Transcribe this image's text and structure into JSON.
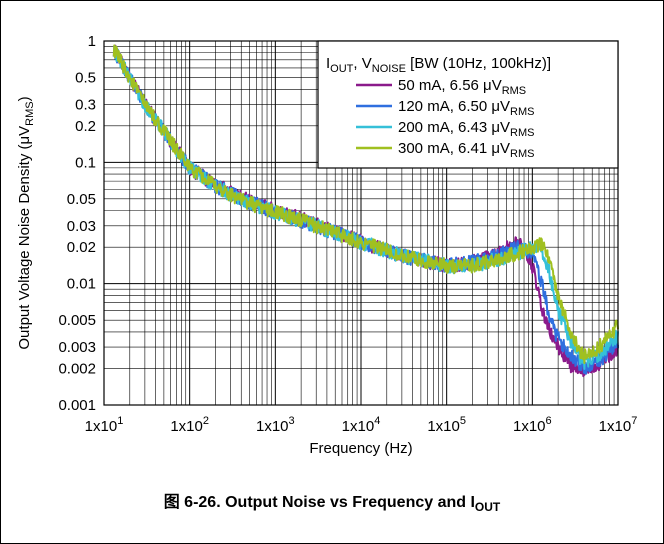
{
  "caption": {
    "prefix": "图 6-26. Output Noise vs Frequency and I",
    "sub": "OUT"
  },
  "chart_data": {
    "type": "line",
    "xscale": "log",
    "yscale": "log",
    "xlim": [
      10,
      10000000
    ],
    "ylim": [
      0.001,
      1
    ],
    "grid": true,
    "xlabel": "Frequency (Hz)",
    "ylabel": {
      "text": "Output Voltage Noise Density (μV",
      "sub": "RMS",
      "suffix": ")"
    },
    "x_ticks": [
      {
        "base": "1x10",
        "exp": "1",
        "value": 10
      },
      {
        "base": "1x10",
        "exp": "2",
        "value": 100
      },
      {
        "base": "1x10",
        "exp": "3",
        "value": 1000
      },
      {
        "base": "1x10",
        "exp": "4",
        "value": 10000
      },
      {
        "base": "1x10",
        "exp": "5",
        "value": 100000
      },
      {
        "base": "1x10",
        "exp": "6",
        "value": 1000000
      },
      {
        "base": "1x10",
        "exp": "7",
        "value": 10000000
      }
    ],
    "y_ticks": [
      {
        "label": "1",
        "value": 1
      },
      {
        "label": "0.5",
        "value": 0.5
      },
      {
        "label": "0.3",
        "value": 0.3
      },
      {
        "label": "0.2",
        "value": 0.2
      },
      {
        "label": "0.1",
        "value": 0.1
      },
      {
        "label": "0.05",
        "value": 0.05
      },
      {
        "label": "0.03",
        "value": 0.03
      },
      {
        "label": "0.02",
        "value": 0.02
      },
      {
        "label": "0.01",
        "value": 0.01
      },
      {
        "label": "0.005",
        "value": 0.005
      },
      {
        "label": "0.003",
        "value": 0.003
      },
      {
        "label": "0.002",
        "value": 0.002
      },
      {
        "label": "0.001",
        "value": 0.001
      }
    ],
    "legend": {
      "placement": "top-right",
      "title": {
        "p1": "I",
        "s1": "OUT",
        "p2": ", V",
        "s2": "NOISE",
        "p3": " [BW (10Hz, 100kHz)]"
      }
    },
    "series": [
      {
        "name": "50 mA, 6.56 μV",
        "name_sub": "RMS",
        "color": "#8b1a8b",
        "x": [
          13,
          20,
          30,
          50,
          100,
          200,
          500,
          1000,
          3000,
          10000,
          30000,
          100000,
          200000,
          400000,
          700000,
          1000000,
          1300000,
          1600000,
          2000000,
          3000000,
          4000000,
          6000000,
          10000000
        ],
        "y": [
          0.85,
          0.5,
          0.3,
          0.18,
          0.09,
          0.065,
          0.048,
          0.04,
          0.031,
          0.022,
          0.017,
          0.014,
          0.015,
          0.018,
          0.022,
          0.014,
          0.006,
          0.004,
          0.003,
          0.002,
          0.0019,
          0.0022,
          0.003
        ]
      },
      {
        "name": "120 mA, 6.50 μV",
        "name_sub": "RMS",
        "color": "#2f6fdf",
        "x": [
          13,
          20,
          30,
          50,
          100,
          200,
          500,
          1000,
          3000,
          10000,
          30000,
          100000,
          200000,
          400000,
          700000,
          1000000,
          1300000,
          1600000,
          2000000,
          3000000,
          4000000,
          6000000,
          10000000
        ],
        "y": [
          0.85,
          0.5,
          0.3,
          0.18,
          0.09,
          0.064,
          0.047,
          0.039,
          0.03,
          0.022,
          0.017,
          0.014,
          0.015,
          0.017,
          0.02,
          0.018,
          0.01,
          0.005,
          0.0035,
          0.0025,
          0.002,
          0.0023,
          0.0032
        ]
      },
      {
        "name": "200 mA, 6.43 μV",
        "name_sub": "RMS",
        "color": "#35c0d8",
        "x": [
          13,
          20,
          30,
          50,
          100,
          200,
          500,
          1000,
          3000,
          10000,
          30000,
          100000,
          200000,
          400000,
          700000,
          1000000,
          1300000,
          1600000,
          2000000,
          3000000,
          4000000,
          6000000,
          10000000
        ],
        "y": [
          0.85,
          0.5,
          0.3,
          0.18,
          0.09,
          0.063,
          0.046,
          0.039,
          0.03,
          0.022,
          0.017,
          0.014,
          0.014,
          0.016,
          0.018,
          0.02,
          0.019,
          0.012,
          0.006,
          0.003,
          0.0022,
          0.0026,
          0.0038
        ]
      },
      {
        "name": "300 mA, 6.41 μV",
        "name_sub": "RMS",
        "color": "#a0c020",
        "x": [
          13,
          20,
          30,
          50,
          100,
          200,
          500,
          1000,
          3000,
          10000,
          30000,
          100000,
          200000,
          400000,
          700000,
          1000000,
          1300000,
          1600000,
          2000000,
          3000000,
          4000000,
          6000000,
          10000000
        ],
        "y": [
          0.85,
          0.5,
          0.3,
          0.18,
          0.09,
          0.063,
          0.046,
          0.039,
          0.03,
          0.022,
          0.017,
          0.014,
          0.014,
          0.016,
          0.018,
          0.02,
          0.021,
          0.016,
          0.008,
          0.0035,
          0.0025,
          0.003,
          0.0045
        ]
      }
    ]
  }
}
